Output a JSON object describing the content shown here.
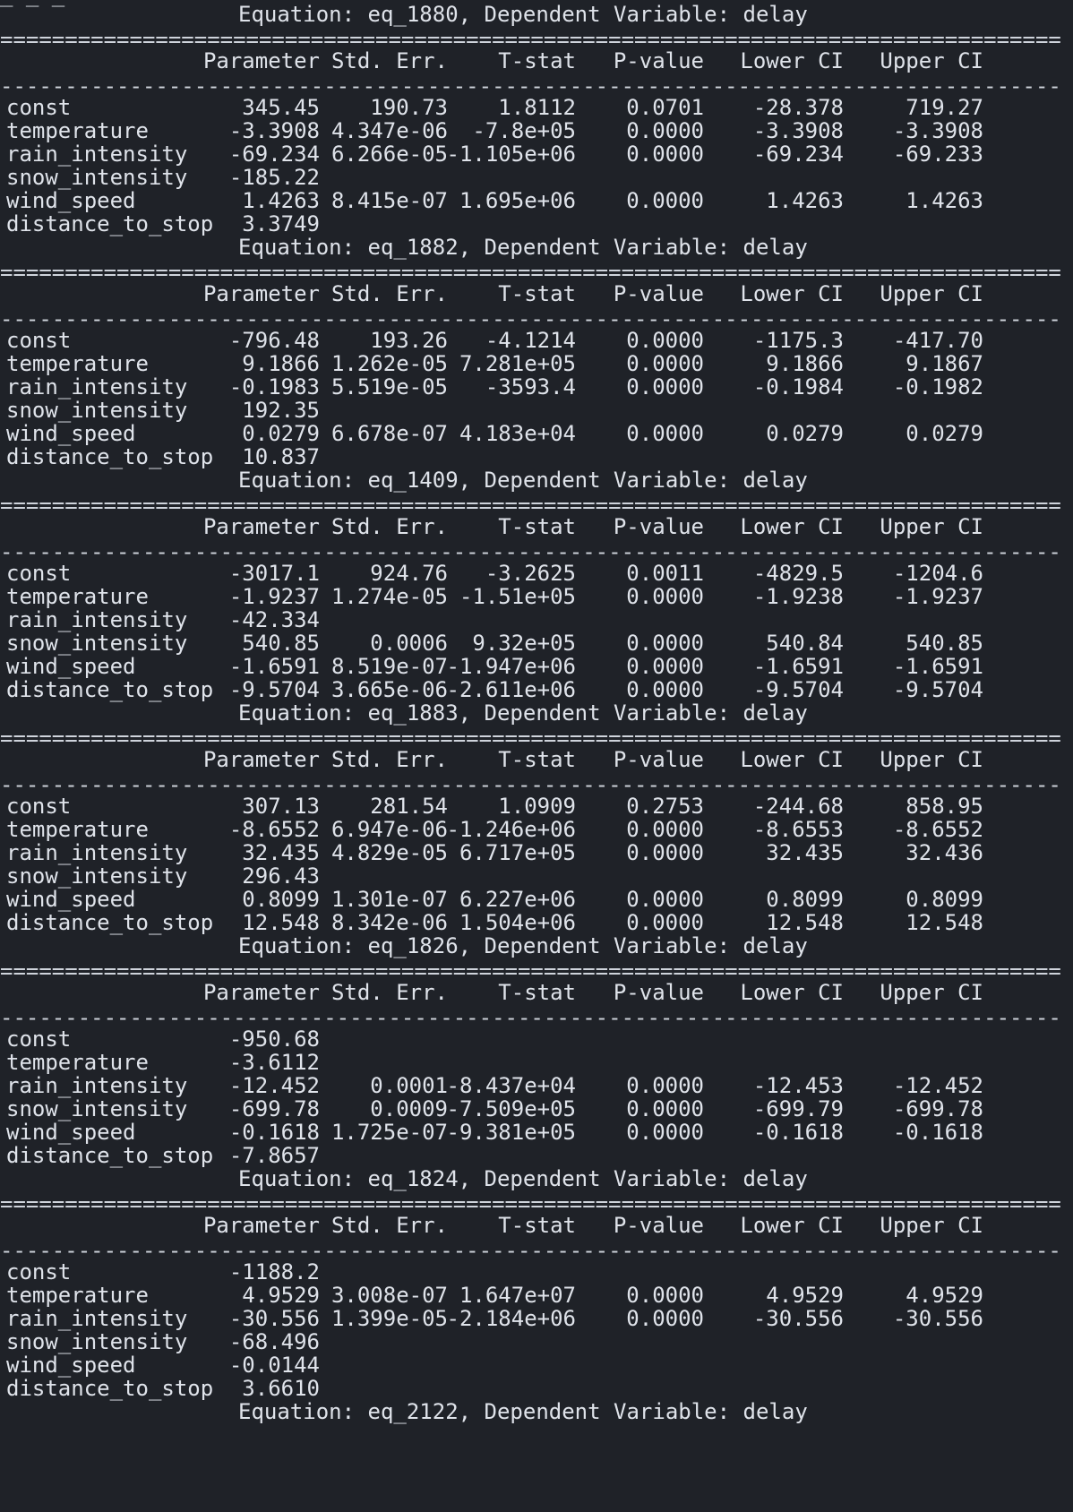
{
  "terminal": {
    "top_fragment": "_ _ _",
    "labels": {
      "parameter": "Parameter",
      "std_err": "Std. Err.",
      "tstat": "T-stat",
      "pvalue": "P-value",
      "lower": "Lower CI",
      "upper": "Upper CI",
      "equals_rule": "=================================================================================================",
      "dash_rule": "-------------------------------------------------------------------------------------------------"
    },
    "blocks": [
      {
        "header": "Equation: eq_1880, Dependent Variable: delay",
        "rows": [
          {
            "name": "const",
            "param": "345.45",
            "stderr": "190.73",
            "tstat": "1.8112",
            "pval": "0.0701",
            "lower": "-28.378",
            "upper": "719.27"
          },
          {
            "name": "temperature",
            "param": "-3.3908",
            "stderr": "4.347e-06",
            "tstat": "-7.8e+05",
            "pval": "0.0000",
            "lower": "-3.3908",
            "upper": "-3.3908"
          },
          {
            "name": "rain_intensity",
            "param": "-69.234",
            "stderr": "6.266e-05",
            "tstat": "-1.105e+06",
            "pval": "0.0000",
            "lower": "-69.234",
            "upper": "-69.233"
          },
          {
            "name": "snow_intensity",
            "param": "-185.22",
            "stderr": "",
            "tstat": "",
            "pval": "",
            "lower": "",
            "upper": ""
          },
          {
            "name": "wind_speed",
            "param": "1.4263",
            "stderr": "8.415e-07",
            "tstat": "1.695e+06",
            "pval": "0.0000",
            "lower": "1.4263",
            "upper": "1.4263"
          },
          {
            "name": "distance_to_stop",
            "param": "3.3749",
            "stderr": "",
            "tstat": "",
            "pval": "",
            "lower": "",
            "upper": ""
          }
        ]
      },
      {
        "header": "Equation: eq_1882, Dependent Variable: delay",
        "rows": [
          {
            "name": "const",
            "param": "-796.48",
            "stderr": "193.26",
            "tstat": "-4.1214",
            "pval": "0.0000",
            "lower": "-1175.3",
            "upper": "-417.70"
          },
          {
            "name": "temperature",
            "param": "9.1866",
            "stderr": "1.262e-05",
            "tstat": "7.281e+05",
            "pval": "0.0000",
            "lower": "9.1866",
            "upper": "9.1867"
          },
          {
            "name": "rain_intensity",
            "param": "-0.1983",
            "stderr": "5.519e-05",
            "tstat": "-3593.4",
            "pval": "0.0000",
            "lower": "-0.1984",
            "upper": "-0.1982"
          },
          {
            "name": "snow_intensity",
            "param": "192.35",
            "stderr": "",
            "tstat": "",
            "pval": "",
            "lower": "",
            "upper": ""
          },
          {
            "name": "wind_speed",
            "param": "0.0279",
            "stderr": "6.678e-07",
            "tstat": "4.183e+04",
            "pval": "0.0000",
            "lower": "0.0279",
            "upper": "0.0279"
          },
          {
            "name": "distance_to_stop",
            "param": "10.837",
            "stderr": "",
            "tstat": "",
            "pval": "",
            "lower": "",
            "upper": ""
          }
        ]
      },
      {
        "header": "Equation: eq_1409, Dependent Variable: delay",
        "rows": [
          {
            "name": "const",
            "param": "-3017.1",
            "stderr": "924.76",
            "tstat": "-3.2625",
            "pval": "0.0011",
            "lower": "-4829.5",
            "upper": "-1204.6"
          },
          {
            "name": "temperature",
            "param": "-1.9237",
            "stderr": "1.274e-05",
            "tstat": "-1.51e+05",
            "pval": "0.0000",
            "lower": "-1.9238",
            "upper": "-1.9237"
          },
          {
            "name": "rain_intensity",
            "param": "-42.334",
            "stderr": "",
            "tstat": "",
            "pval": "",
            "lower": "",
            "upper": ""
          },
          {
            "name": "snow_intensity",
            "param": "540.85",
            "stderr": "0.0006",
            "tstat": "9.32e+05",
            "pval": "0.0000",
            "lower": "540.84",
            "upper": "540.85"
          },
          {
            "name": "wind_speed",
            "param": "-1.6591",
            "stderr": "8.519e-07",
            "tstat": "-1.947e+06",
            "pval": "0.0000",
            "lower": "-1.6591",
            "upper": "-1.6591"
          },
          {
            "name": "distance_to_stop",
            "param": "-9.5704",
            "stderr": "3.665e-06",
            "tstat": "-2.611e+06",
            "pval": "0.0000",
            "lower": "-9.5704",
            "upper": "-9.5704"
          }
        ]
      },
      {
        "header": "Equation: eq_1883, Dependent Variable: delay",
        "rows": [
          {
            "name": "const",
            "param": "307.13",
            "stderr": "281.54",
            "tstat": "1.0909",
            "pval": "0.2753",
            "lower": "-244.68",
            "upper": "858.95"
          },
          {
            "name": "temperature",
            "param": "-8.6552",
            "stderr": "6.947e-06",
            "tstat": "-1.246e+06",
            "pval": "0.0000",
            "lower": "-8.6553",
            "upper": "-8.6552"
          },
          {
            "name": "rain_intensity",
            "param": "32.435",
            "stderr": "4.829e-05",
            "tstat": "6.717e+05",
            "pval": "0.0000",
            "lower": "32.435",
            "upper": "32.436"
          },
          {
            "name": "snow_intensity",
            "param": "296.43",
            "stderr": "",
            "tstat": "",
            "pval": "",
            "lower": "",
            "upper": ""
          },
          {
            "name": "wind_speed",
            "param": "0.8099",
            "stderr": "1.301e-07",
            "tstat": "6.227e+06",
            "pval": "0.0000",
            "lower": "0.8099",
            "upper": "0.8099"
          },
          {
            "name": "distance_to_stop",
            "param": "12.548",
            "stderr": "8.342e-06",
            "tstat": "1.504e+06",
            "pval": "0.0000",
            "lower": "12.548",
            "upper": "12.548"
          }
        ]
      },
      {
        "header": "Equation: eq_1826, Dependent Variable: delay",
        "rows": [
          {
            "name": "const",
            "param": "-950.68",
            "stderr": "",
            "tstat": "",
            "pval": "",
            "lower": "",
            "upper": ""
          },
          {
            "name": "temperature",
            "param": "-3.6112",
            "stderr": "",
            "tstat": "",
            "pval": "",
            "lower": "",
            "upper": ""
          },
          {
            "name": "rain_intensity",
            "param": "-12.452",
            "stderr": "0.0001",
            "tstat": "-8.437e+04",
            "pval": "0.0000",
            "lower": "-12.453",
            "upper": "-12.452"
          },
          {
            "name": "snow_intensity",
            "param": "-699.78",
            "stderr": "0.0009",
            "tstat": "-7.509e+05",
            "pval": "0.0000",
            "lower": "-699.79",
            "upper": "-699.78"
          },
          {
            "name": "wind_speed",
            "param": "-0.1618",
            "stderr": "1.725e-07",
            "tstat": "-9.381e+05",
            "pval": "0.0000",
            "lower": "-0.1618",
            "upper": "-0.1618"
          },
          {
            "name": "distance_to_stop",
            "param": "-7.8657",
            "stderr": "",
            "tstat": "",
            "pval": "",
            "lower": "",
            "upper": ""
          }
        ]
      },
      {
        "header": "Equation: eq_1824, Dependent Variable: delay",
        "rows": [
          {
            "name": "const",
            "param": "-1188.2",
            "stderr": "",
            "tstat": "",
            "pval": "",
            "lower": "",
            "upper": ""
          },
          {
            "name": "temperature",
            "param": "4.9529",
            "stderr": "3.008e-07",
            "tstat": "1.647e+07",
            "pval": "0.0000",
            "lower": "4.9529",
            "upper": "4.9529"
          },
          {
            "name": "rain_intensity",
            "param": "-30.556",
            "stderr": "1.399e-05",
            "tstat": "-2.184e+06",
            "pval": "0.0000",
            "lower": "-30.556",
            "upper": "-30.556"
          },
          {
            "name": "snow_intensity",
            "param": "-68.496",
            "stderr": "",
            "tstat": "",
            "pval": "",
            "lower": "",
            "upper": ""
          },
          {
            "name": "wind_speed",
            "param": "-0.0144",
            "stderr": "",
            "tstat": "",
            "pval": "",
            "lower": "",
            "upper": ""
          },
          {
            "name": "distance_to_stop",
            "param": "3.6610",
            "stderr": "",
            "tstat": "",
            "pval": "",
            "lower": "",
            "upper": ""
          }
        ]
      }
    ],
    "bottom_fragment": "Equation: eq_2122, Dependent Variable: delay"
  }
}
